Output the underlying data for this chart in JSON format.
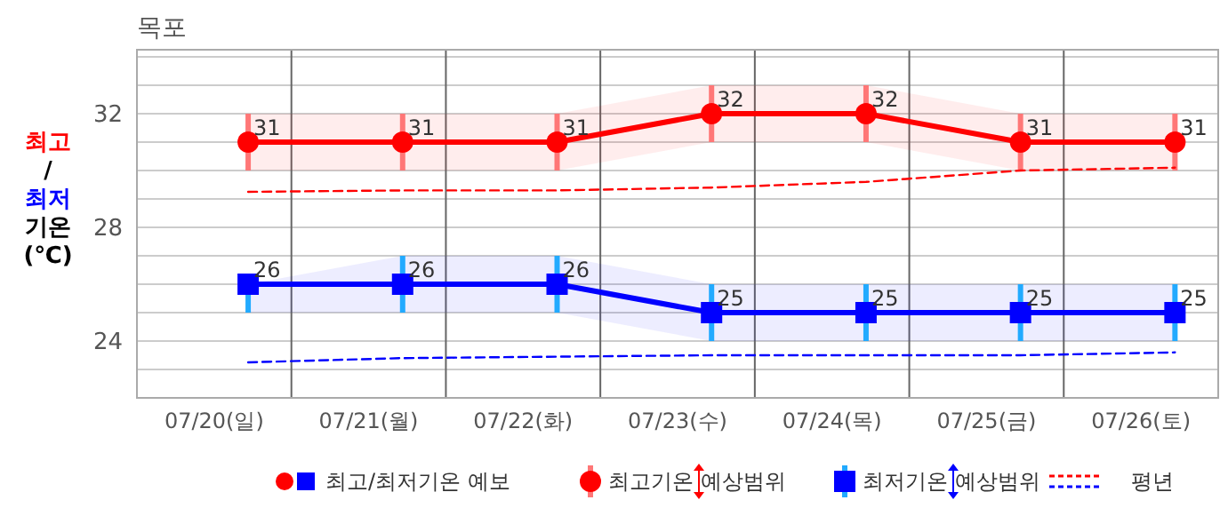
{
  "chart_data": {
    "type": "line",
    "title": "목포",
    "ylabel": "최고/최저 기온 (℃)",
    "categories": [
      "07/20(일)",
      "07/21(월)",
      "07/22(화)",
      "07/23(수)",
      "07/24(목)",
      "07/25(금)",
      "07/26(토)"
    ],
    "series": [
      {
        "name": "최고기온 예상범위",
        "color": "#ff0000",
        "marker": "circle",
        "values": [
          31,
          31,
          31,
          32,
          32,
          31,
          31
        ],
        "value_labels": [
          "31",
          "31",
          "31",
          "32",
          "32",
          "31",
          "31"
        ],
        "errors": [
          [
            30,
            32
          ],
          [
            30,
            32
          ],
          [
            30,
            32
          ],
          [
            31,
            33
          ],
          [
            31,
            33
          ],
          [
            30,
            32
          ],
          [
            30,
            32
          ]
        ],
        "lower": [
          30,
          30,
          30,
          31,
          31,
          30,
          30
        ],
        "upper": [
          32,
          32,
          32,
          33,
          33,
          32,
          32
        ]
      },
      {
        "name": "최저기온 예상범위",
        "color": "#0000ff",
        "marker": "square",
        "values": [
          26,
          26,
          26,
          25,
          25,
          25,
          25
        ],
        "value_labels": [
          "26",
          "26",
          "26",
          "25",
          "25",
          "25",
          "25"
        ],
        "errors": [
          [
            25,
            26
          ],
          [
            25,
            27
          ],
          [
            25,
            27
          ],
          [
            24,
            26
          ],
          [
            24,
            26
          ],
          [
            24,
            26
          ],
          [
            24,
            26
          ]
        ],
        "lower": [
          25,
          25,
          25,
          24,
          24,
          24,
          24
        ],
        "upper": [
          26,
          27,
          27,
          26,
          26,
          26,
          26
        ]
      },
      {
        "name": "평년",
        "color": "#ff0000",
        "marker": "none",
        "line_style": "dashed",
        "values": [
          29.25,
          29.3,
          29.3,
          29.4,
          29.6,
          30.0,
          30.1
        ]
      },
      {
        "color": "#0000ff",
        "marker": "none",
        "line_style": "dashed",
        "values": [
          23.25,
          23.4,
          23.45,
          23.5,
          23.5,
          23.5,
          23.6
        ]
      }
    ],
    "annotations": [
      "최고/최저기온 예보"
    ],
    "grid": true,
    "legend": "bottom",
    "ylim": [
      22,
      34.25
    ],
    "yticks": [
      {
        "value": 23,
        "label": null
      },
      24,
      {
        "value": 25,
        "label": null
      },
      {
        "value": 26,
        "label": null
      },
      {
        "value": 27,
        "label": null
      },
      28,
      {
        "value": 29,
        "label": null
      },
      {
        "value": 30,
        "label": null
      },
      {
        "value": 31,
        "label": null
      },
      32,
      {
        "value": 33,
        "label": null
      },
      {
        "value": 34,
        "label": null
      }
    ]
  }
}
